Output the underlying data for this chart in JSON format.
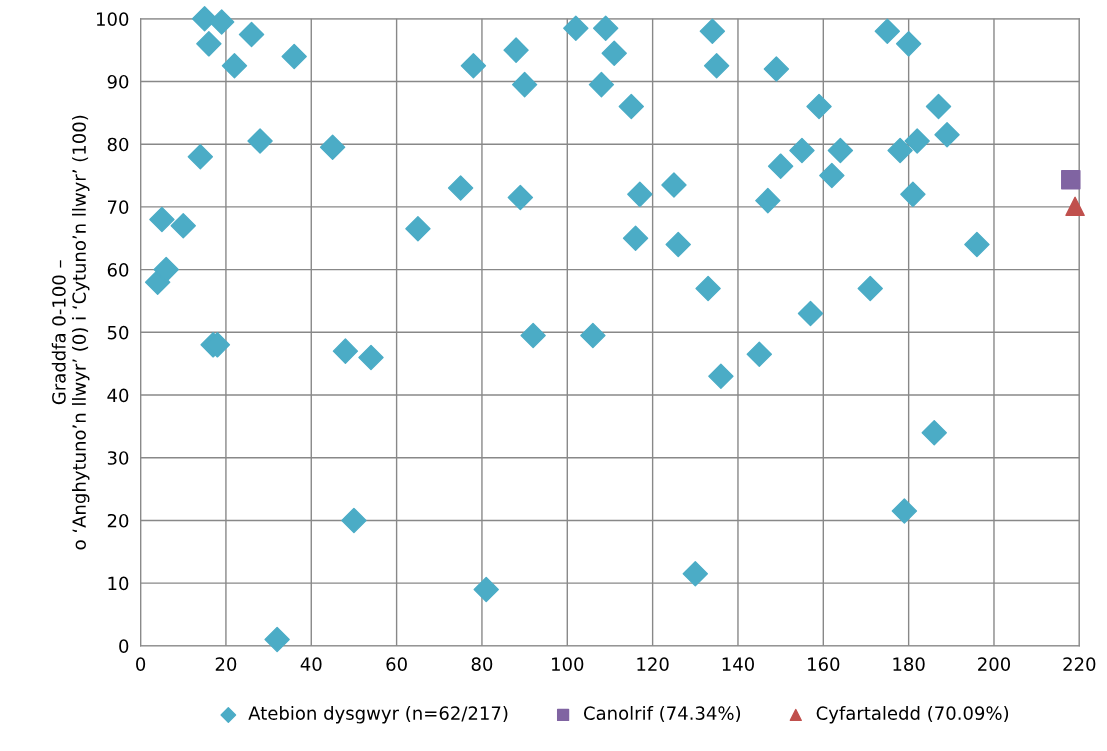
{
  "chart_data": {
    "type": "scatter",
    "ylabel": "Graddfa 0-100 –\no ‘Anghytuno’n llwyr’ (0) i ‘Cytuno’n llwyr’ (100)",
    "xlim": [
      0,
      220
    ],
    "xticks": [
      0,
      20,
      40,
      60,
      80,
      100,
      120,
      140,
      160,
      180,
      200,
      220
    ],
    "ylim": [
      0,
      100
    ],
    "yticks": [
      0,
      10,
      20,
      30,
      40,
      50,
      60,
      70,
      80,
      90,
      100
    ],
    "grid": true,
    "legend": "bottom",
    "series": [
      {
        "name": "Atebion dysgwyr (n=62/217)",
        "color": "#4bacc6",
        "marker": "diamond",
        "x": [
          4,
          5,
          6,
          10,
          14,
          15,
          16,
          17,
          18,
          19,
          22,
          26,
          28,
          32,
          36,
          45,
          48,
          50,
          54,
          65,
          75,
          78,
          81,
          88,
          89,
          90,
          92,
          102,
          106,
          108,
          109,
          111,
          115,
          116,
          117,
          125,
          126,
          130,
          133,
          134,
          135,
          136,
          145,
          147,
          149,
          150,
          155,
          157,
          159,
          162,
          164,
          171,
          175,
          178,
          179,
          180,
          181,
          182,
          186,
          187,
          189,
          196
        ],
        "values": [
          58,
          68,
          60,
          67,
          78,
          100,
          96,
          48,
          48,
          99.5,
          92.5,
          97.5,
          80.5,
          1,
          94,
          79.5,
          47,
          20,
          46,
          66.5,
          73,
          92.5,
          9,
          95,
          71.5,
          89.5,
          49.5,
          98.5,
          49.5,
          89.5,
          98.5,
          94.5,
          86,
          65,
          72,
          73.5,
          64,
          11.5,
          57,
          98,
          92.5,
          43,
          46.5,
          71,
          92,
          76.5,
          79,
          53,
          86,
          75,
          79,
          57,
          98,
          79,
          21.5,
          96,
          72,
          80.5,
          34,
          86,
          81.5,
          64
        ]
      },
      {
        "name": "Canolrif (74.34%)",
        "color": "#8064a2",
        "marker": "square",
        "x": [
          218
        ],
        "values": [
          74.34
        ]
      },
      {
        "name": "Cyfartaledd (70.09%)",
        "color": "#c0504d",
        "marker": "triangle",
        "x": [
          219
        ],
        "values": [
          70.09
        ]
      }
    ]
  }
}
